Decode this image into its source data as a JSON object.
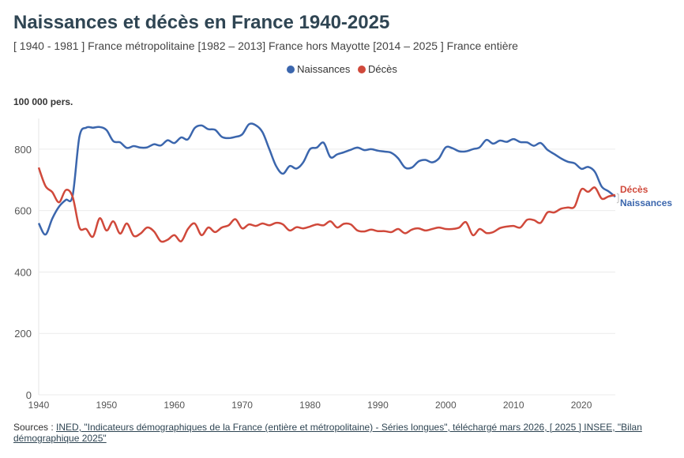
{
  "header": {
    "title": "Naissances et décès en France 1940-2025",
    "subtitle": "[ 1940 - 1981 ] France métropolitaine [1982 – 2013] France hors Mayotte [2014 – 2025 ] France entière"
  },
  "sources": {
    "prefix": "Sources : ",
    "link1": "INED, \"Indicateurs démographiques de la France (entière et métropolitaine) - Séries longues\", téléchargé mars 2026, [ 2025 ] INSEE, \"Bilan démographique 2025\""
  },
  "chart_data": {
    "type": "line",
    "title": "Naissances et décès en France 1940-2025",
    "ylabel": "100 000 pers.",
    "xlim": [
      1940,
      2025
    ],
    "ylim": [
      0,
      900
    ],
    "xticks": [
      1940,
      1950,
      1960,
      1970,
      1980,
      1990,
      2000,
      2010,
      2020
    ],
    "yticks": [
      0,
      200,
      400,
      600,
      800
    ],
    "grid": "horizontal",
    "legend_placement": "top",
    "x_start": 1940,
    "series": [
      {
        "name": "Naissances",
        "color": "#3b66ad",
        "values": [
          559,
          522,
          574,
          613,
          635,
          648,
          840,
          870,
          870,
          872,
          862,
          826,
          822,
          804,
          810,
          805,
          806,
          816,
          812,
          829,
          820,
          838,
          832,
          869,
          877,
          865,
          863,
          840,
          836,
          840,
          848,
          881,
          878,
          855,
          800,
          745,
          720,
          745,
          737,
          757,
          800,
          805,
          821,
          774,
          783,
          790,
          798,
          805,
          797,
          800,
          795,
          792,
          788,
          770,
          740,
          740,
          760,
          765,
          757,
          770,
          806,
          803,
          793,
          793,
          800,
          806,
          830,
          818,
          828,
          824,
          833,
          823,
          822,
          811,
          820,
          798,
          784,
          770,
          759,
          754,
          736,
          742,
          726,
          678,
          663,
          645
        ]
      },
      {
        "name": "Décès",
        "color": "#d0493b",
        "values": [
          740,
          680,
          660,
          627,
          667,
          645,
          545,
          540,
          515,
          575,
          535,
          565,
          525,
          558,
          518,
          525,
          545,
          532,
          500,
          505,
          520,
          500,
          540,
          558,
          520,
          545,
          530,
          545,
          552,
          572,
          542,
          555,
          550,
          558,
          552,
          560,
          555,
          535,
          546,
          542,
          548,
          555,
          552,
          565,
          545,
          557,
          555,
          535,
          532,
          538,
          533,
          533,
          530,
          540,
          526,
          538,
          542,
          535,
          540,
          545,
          540,
          540,
          545,
          562,
          520,
          540,
          527,
          530,
          543,
          548,
          550,
          545,
          570,
          569,
          560,
          594,
          594,
          606,
          610,
          613,
          669,
          661,
          675,
          639,
          646,
          651
        ]
      }
    ]
  }
}
